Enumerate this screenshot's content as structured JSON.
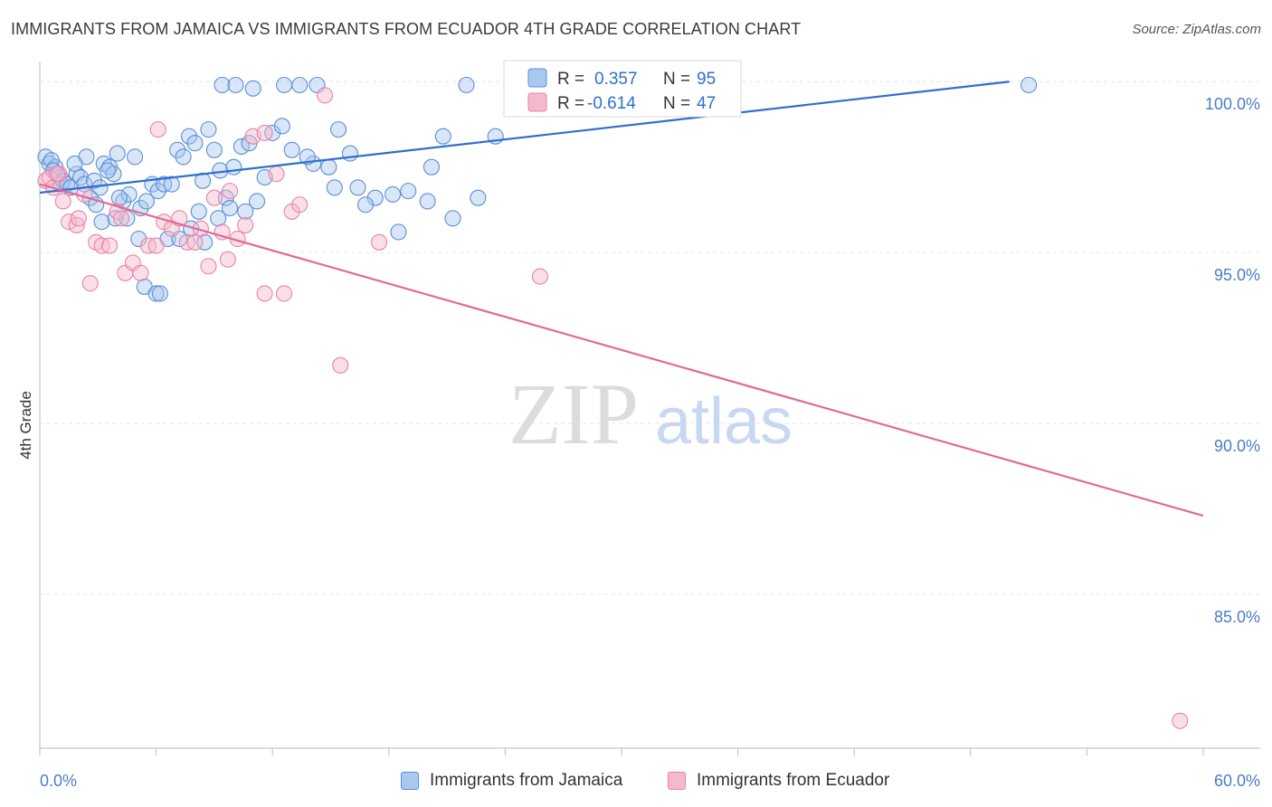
{
  "title": "IMMIGRANTS FROM JAMAICA VS IMMIGRANTS FROM ECUADOR 4TH GRADE CORRELATION CHART",
  "source": "Source: ZipAtlas.com",
  "watermark": {
    "zip": "ZIP",
    "atlas": "atlas"
  },
  "colors": {
    "blue_fill": "#a8c8f0",
    "blue_stroke": "#5b8fd6",
    "blue_line": "#2f6fd0",
    "pink_fill": "#f6b8cc",
    "pink_stroke": "#e784a6",
    "pink_line": "#e06a96",
    "grid": "#e6e6e6",
    "axis_text": "#4a7cc9"
  },
  "chart_data": {
    "type": "scatter",
    "title": "IMMIGRANTS FROM JAMAICA VS IMMIGRANTS FROM ECUADOR 4TH GRADE CORRELATION CHART",
    "xlabel": "",
    "ylabel": "4th Grade",
    "xlim": [
      0,
      60
    ],
    "ylim": [
      80.5,
      100.8
    ],
    "x_tick_labels": [
      "0.0%",
      "60.0%"
    ],
    "y_ticks": [
      85,
      90,
      95,
      100
    ],
    "y_tick_labels": [
      "85.0%",
      "90.0%",
      "95.0%",
      "100.0%"
    ],
    "grid": true,
    "legend_stats": [
      {
        "r_label": "R =",
        "r_value": "0.357",
        "n_label": "N =",
        "n_value": "95"
      },
      {
        "r_label": "R =",
        "r_value": "-0.614",
        "n_label": "N =",
        "n_value": "47"
      }
    ],
    "series": [
      {
        "name": "Immigrants from Jamaica",
        "color": "#a8c8f0",
        "trend": {
          "x": [
            0,
            50
          ],
          "y": [
            96.75,
            100.0
          ]
        },
        "points": [
          [
            0.3,
            97.8
          ],
          [
            0.5,
            97.6
          ],
          [
            0.8,
            97.5
          ],
          [
            0.6,
            97.7
          ],
          [
            0.9,
            97.3
          ],
          [
            1.0,
            97.2
          ],
          [
            1.1,
            97.0
          ],
          [
            1.2,
            97.1
          ],
          [
            1.4,
            97.0
          ],
          [
            1.6,
            96.9
          ],
          [
            1.9,
            97.3
          ],
          [
            2.1,
            97.2
          ],
          [
            2.3,
            97.0
          ],
          [
            2.6,
            96.6
          ],
          [
            2.8,
            97.1
          ],
          [
            3.1,
            96.9
          ],
          [
            3.3,
            97.6
          ],
          [
            3.6,
            97.5
          ],
          [
            3.8,
            97.3
          ],
          [
            2.4,
            97.8
          ],
          [
            4.0,
            97.9
          ],
          [
            4.3,
            96.5
          ],
          [
            4.6,
            96.7
          ],
          [
            4.9,
            97.8
          ],
          [
            5.2,
            96.3
          ],
          [
            5.5,
            96.5
          ],
          [
            5.8,
            97.0
          ],
          [
            6.1,
            96.8
          ],
          [
            6.4,
            97.0
          ],
          [
            6.8,
            97.0
          ],
          [
            7.1,
            98.0
          ],
          [
            7.4,
            97.8
          ],
          [
            7.7,
            98.4
          ],
          [
            8.0,
            98.2
          ],
          [
            8.4,
            97.1
          ],
          [
            8.7,
            98.6
          ],
          [
            9.0,
            98.0
          ],
          [
            9.3,
            97.4
          ],
          [
            9.6,
            96.6
          ],
          [
            10.0,
            97.5
          ],
          [
            10.4,
            98.1
          ],
          [
            10.8,
            98.2
          ],
          [
            11.2,
            96.5
          ],
          [
            11.6,
            97.2
          ],
          [
            12.0,
            98.5
          ],
          [
            12.5,
            98.7
          ],
          [
            13.0,
            98.0
          ],
          [
            13.4,
            99.9
          ],
          [
            9.4,
            99.9
          ],
          [
            10.1,
            99.9
          ],
          [
            11.0,
            99.8
          ],
          [
            12.6,
            99.9
          ],
          [
            14.1,
            97.6
          ],
          [
            14.9,
            97.5
          ],
          [
            15.4,
            98.6
          ],
          [
            16.0,
            97.9
          ],
          [
            16.4,
            96.9
          ],
          [
            17.3,
            96.6
          ],
          [
            18.2,
            96.7
          ],
          [
            19.0,
            96.8
          ],
          [
            20.2,
            97.5
          ],
          [
            20.8,
            98.4
          ],
          [
            21.3,
            96.0
          ],
          [
            20.0,
            96.5
          ],
          [
            18.5,
            95.6
          ],
          [
            16.8,
            96.4
          ],
          [
            3.2,
            95.9
          ],
          [
            3.9,
            96.0
          ],
          [
            4.5,
            96.0
          ],
          [
            5.1,
            95.4
          ],
          [
            5.4,
            94.0
          ],
          [
            6.0,
            93.8
          ],
          [
            6.2,
            93.8
          ],
          [
            6.6,
            95.4
          ],
          [
            7.8,
            95.7
          ],
          [
            8.2,
            96.2
          ],
          [
            8.5,
            95.3
          ],
          [
            9.2,
            96.0
          ],
          [
            9.8,
            96.3
          ],
          [
            10.6,
            96.2
          ],
          [
            14.3,
            99.9
          ],
          [
            22.0,
            99.9
          ],
          [
            51.0,
            99.9
          ],
          [
            25.5,
            99.4
          ],
          [
            25.8,
            100.0
          ],
          [
            23.5,
            98.4
          ],
          [
            22.6,
            96.6
          ],
          [
            3.5,
            97.4
          ],
          [
            1.8,
            97.6
          ],
          [
            0.7,
            97.4
          ],
          [
            2.9,
            96.4
          ],
          [
            4.1,
            96.6
          ],
          [
            7.2,
            95.4
          ],
          [
            13.8,
            97.8
          ],
          [
            15.2,
            96.9
          ]
        ]
      },
      {
        "name": "Immigrants from Ecuador",
        "color": "#f6b8cc",
        "trend": {
          "x": [
            0,
            60
          ],
          "y": [
            97.0,
            87.3
          ]
        },
        "points": [
          [
            0.3,
            97.1
          ],
          [
            0.5,
            97.2
          ],
          [
            0.7,
            96.9
          ],
          [
            1.0,
            97.3
          ],
          [
            1.2,
            96.5
          ],
          [
            1.5,
            95.9
          ],
          [
            1.9,
            95.8
          ],
          [
            2.3,
            96.7
          ],
          [
            2.6,
            94.1
          ],
          [
            2.9,
            95.3
          ],
          [
            3.2,
            95.2
          ],
          [
            3.6,
            95.2
          ],
          [
            4.0,
            96.2
          ],
          [
            4.4,
            94.4
          ],
          [
            4.8,
            94.7
          ],
          [
            5.2,
            94.4
          ],
          [
            5.6,
            95.2
          ],
          [
            6.0,
            95.2
          ],
          [
            6.4,
            95.9
          ],
          [
            6.8,
            95.7
          ],
          [
            7.2,
            96.0
          ],
          [
            7.6,
            95.3
          ],
          [
            8.0,
            95.3
          ],
          [
            8.3,
            95.7
          ],
          [
            8.7,
            94.6
          ],
          [
            9.0,
            96.6
          ],
          [
            9.4,
            95.6
          ],
          [
            9.8,
            96.8
          ],
          [
            10.2,
            95.4
          ],
          [
            10.6,
            95.8
          ],
          [
            11.0,
            98.4
          ],
          [
            11.6,
            93.8
          ],
          [
            12.2,
            97.3
          ],
          [
            12.6,
            93.8
          ],
          [
            13.0,
            96.2
          ],
          [
            13.4,
            96.4
          ],
          [
            14.7,
            99.6
          ],
          [
            15.5,
            91.7
          ],
          [
            17.5,
            95.3
          ],
          [
            25.8,
            94.3
          ],
          [
            58.8,
            81.3
          ],
          [
            6.1,
            98.6
          ],
          [
            11.6,
            98.5
          ],
          [
            0.9,
            97.3
          ],
          [
            2.0,
            96.0
          ],
          [
            4.2,
            96.0
          ],
          [
            9.7,
            94.8
          ]
        ]
      }
    ]
  }
}
